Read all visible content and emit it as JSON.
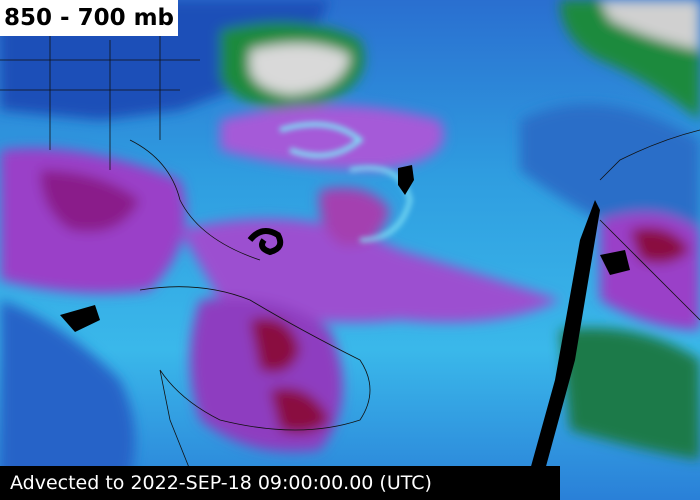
{
  "header": {
    "title": "850 - 700 mb"
  },
  "footer": {
    "timestamp": "Advected to 2022-SEP-18 09:00:00.00 (UTC)"
  }
}
